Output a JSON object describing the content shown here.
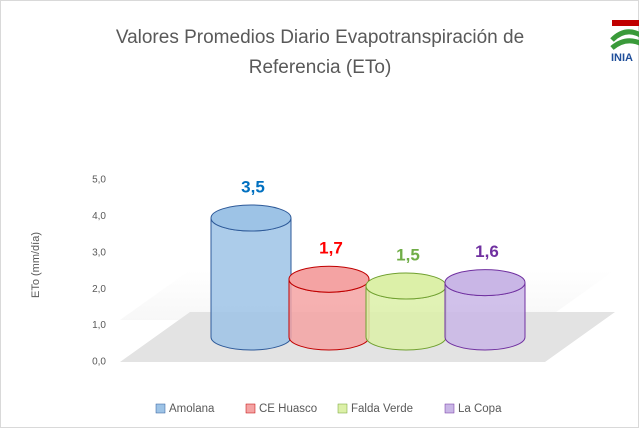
{
  "chart_data": {
    "type": "bar3d",
    "title": [
      "Valores Promedios Diario  Evapotranspiración de",
      "Referencia (ETo)"
    ],
    "logo": "INIA",
    "y_label": "ETo  (mm/día)",
    "categories": [
      "Amolana",
      "CE Huasco",
      "Falda Verde",
      "La Copa"
    ],
    "values": [
      3.5,
      1.7,
      1.5,
      1.6
    ],
    "value_labels": [
      "3,5",
      "1,7",
      "1,5",
      "1,6"
    ],
    "colors": [
      "#9dc3e6",
      "#f4a3a3",
      "#dcf0a8",
      "#c9b6e6"
    ],
    "edge_colors": [
      "#2e5a99",
      "#c00000",
      "#70a030",
      "#7030a0"
    ],
    "label_colors": [
      "#0070c0",
      "#ff0000",
      "#70ad47",
      "#7030a0"
    ],
    "ylim": [
      0,
      5
    ],
    "yticks": [
      {
        "value": 0,
        "label": "0,0"
      },
      {
        "value": 1,
        "label": "1,0"
      },
      {
        "value": 2,
        "label": "2,0"
      },
      {
        "value": 3,
        "label": "3,0"
      },
      {
        "value": 4,
        "label": "4,0"
      },
      {
        "value": 5,
        "label": "5,0"
      }
    ],
    "grid": false,
    "legend": "bottom"
  }
}
